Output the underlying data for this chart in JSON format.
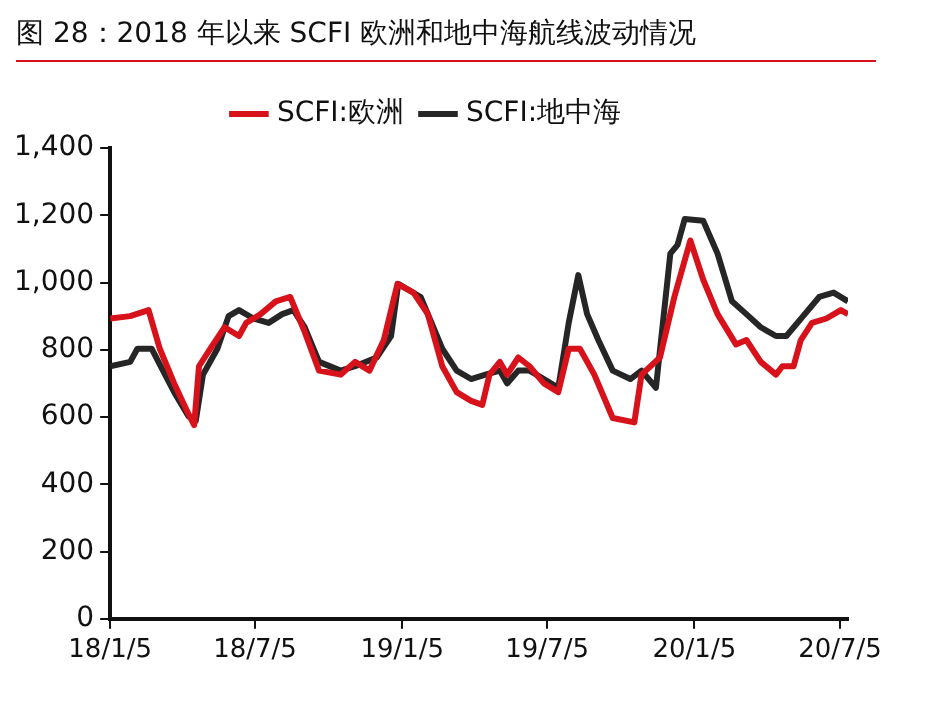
{
  "chart_data": {
    "type": "line",
    "title": "图 28：2018 年以来 SCFI 欧洲和地中海航线波动情况",
    "series": [
      {
        "name": "SCFI:欧洲",
        "color": "#d7121b",
        "x": [
          "2018-01-05",
          "2018-01-30",
          "2018-02-22",
          "2018-03-08",
          "2018-03-26",
          "2018-04-10",
          "2018-04-20",
          "2018-04-26",
          "2018-05-10",
          "2018-05-28",
          "2018-06-15",
          "2018-06-24",
          "2018-07-12",
          "2018-07-31",
          "2018-08-18",
          "2018-09-05",
          "2018-09-23",
          "2018-10-20",
          "2018-11-07",
          "2018-11-25",
          "2018-12-13",
          "2018-12-30",
          "2019-01-19",
          "2019-02-06",
          "2019-02-24",
          "2019-03-14",
          "2019-04-01",
          "2019-04-15",
          "2019-04-24",
          "2019-05-07",
          "2019-05-16",
          "2019-05-30",
          "2019-06-13",
          "2019-07-01",
          "2019-07-19",
          "2019-08-01",
          "2019-08-15",
          "2019-09-02",
          "2019-09-25",
          "2019-10-22",
          "2019-10-31",
          "2019-11-23",
          "2019-12-11",
          "2019-12-31",
          "2020-01-16",
          "2020-02-03",
          "2020-02-26",
          "2020-03-10",
          "2020-03-28",
          "2020-04-16",
          "2020-04-24",
          "2020-05-08",
          "2020-05-17",
          "2020-05-31",
          "2020-06-18",
          "2020-07-06",
          "2020-07-15"
        ],
        "values": [
          893,
          900,
          918,
          803,
          700,
          623,
          576,
          751,
          803,
          867,
          841,
          880,
          906,
          944,
          957,
          854,
          738,
          726,
          764,
          738,
          829,
          996,
          970,
          906,
          751,
          674,
          648,
          636,
          726,
          764,
          726,
          777,
          751,
          700,
          674,
          803,
          803,
          726,
          597,
          584,
          726,
          777,
          957,
          1125,
          1009,
          906,
          816,
          829,
          764,
          726,
          751,
          751,
          829,
          880,
          893,
          918,
          906
        ]
      },
      {
        "name": "SCFI:地中海",
        "color": "#262626",
        "x": [
          "2018-01-05",
          "2018-01-30",
          "2018-02-08",
          "2018-02-26",
          "2018-03-12",
          "2018-03-26",
          "2018-04-13",
          "2018-04-22",
          "2018-05-01",
          "2018-05-19",
          "2018-06-02",
          "2018-06-15",
          "2018-07-03",
          "2018-07-22",
          "2018-08-08",
          "2018-08-22",
          "2018-09-05",
          "2018-09-23",
          "2018-10-20",
          "2018-11-07",
          "2018-12-04",
          "2018-12-22",
          "2018-12-31",
          "2019-01-28",
          "2019-02-24",
          "2019-03-14",
          "2019-04-01",
          "2019-04-19",
          "2019-05-07",
          "2019-05-16",
          "2019-05-30",
          "2019-06-13",
          "2019-07-01",
          "2019-07-19",
          "2019-08-01",
          "2019-08-13",
          "2019-08-24",
          "2019-09-07",
          "2019-09-25",
          "2019-10-17",
          "2019-10-31",
          "2019-11-18",
          "2019-12-06",
          "2019-12-15",
          "2019-12-24",
          "2020-01-16",
          "2020-02-03",
          "2020-02-21",
          "2020-03-10",
          "2020-03-28",
          "2020-04-16",
          "2020-04-29",
          "2020-05-22",
          "2020-06-09",
          "2020-06-27",
          "2020-07-15"
        ],
        "values": [
          751,
          764,
          803,
          803,
          738,
          674,
          602,
          589,
          726,
          803,
          900,
          918,
          893,
          880,
          906,
          918,
          867,
          764,
          738,
          751,
          777,
          841,
          996,
          957,
          803,
          738,
          713,
          726,
          738,
          700,
          738,
          738,
          713,
          687,
          880,
          1022,
          906,
          829,
          738,
          713,
          738,
          687,
          1086,
          1112,
          1189,
          1184,
          1086,
          944,
          906,
          867,
          841,
          841,
          906,
          957,
          970,
          944
        ]
      }
    ],
    "xlim": [
      "2018-01-05",
      "2020-07-15"
    ],
    "xticks": [
      {
        "value": "2018-01-05",
        "label": "18/1/5"
      },
      {
        "value": "2018-07-05",
        "label": "18/7/5"
      },
      {
        "value": "2019-01-05",
        "label": "19/1/5"
      },
      {
        "value": "2019-07-05",
        "label": "19/7/5"
      },
      {
        "value": "2020-01-05",
        "label": "20/1/5"
      },
      {
        "value": "2020-07-05",
        "label": "20/7/5"
      }
    ],
    "ylim": [
      0,
      1400
    ],
    "yticks": [
      0,
      200,
      400,
      600,
      800,
      {
        "value": 1000,
        "label": "1,000"
      },
      {
        "value": 1200,
        "label": "1,200"
      },
      {
        "value": 1400,
        "label": "1,400"
      }
    ],
    "grid": false,
    "legend": "top",
    "marker": "none",
    "line_style": "solid"
  }
}
